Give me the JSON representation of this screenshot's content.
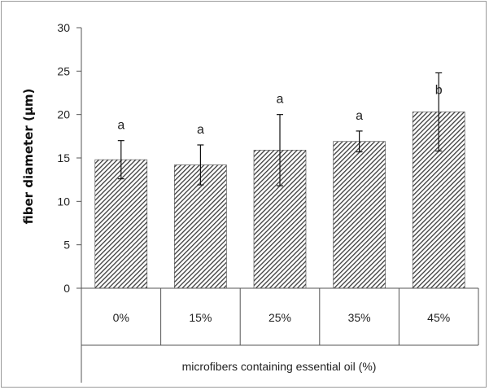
{
  "chart_data": {
    "type": "bar",
    "title": "",
    "xlabel": "microfibers containing essential oil (%)",
    "ylabel": "fiber diameter (μm)",
    "ylim": [
      0,
      30
    ],
    "yticks": [
      0,
      5,
      10,
      15,
      20,
      25,
      30
    ],
    "categories": [
      "0%",
      "15%",
      "25%",
      "35%",
      "45%"
    ],
    "values": [
      14.8,
      14.2,
      15.9,
      16.9,
      20.3
    ],
    "errors": [
      2.2,
      2.3,
      4.1,
      1.2,
      4.5
    ],
    "significance": [
      "a",
      "a",
      "a",
      "a",
      "b"
    ],
    "bar_pattern": "diagonal-hatch",
    "grid": false,
    "colors": {
      "bar_fill": "#3a3a3a",
      "axis": "#555555",
      "frame": "#9a9a9a"
    }
  }
}
